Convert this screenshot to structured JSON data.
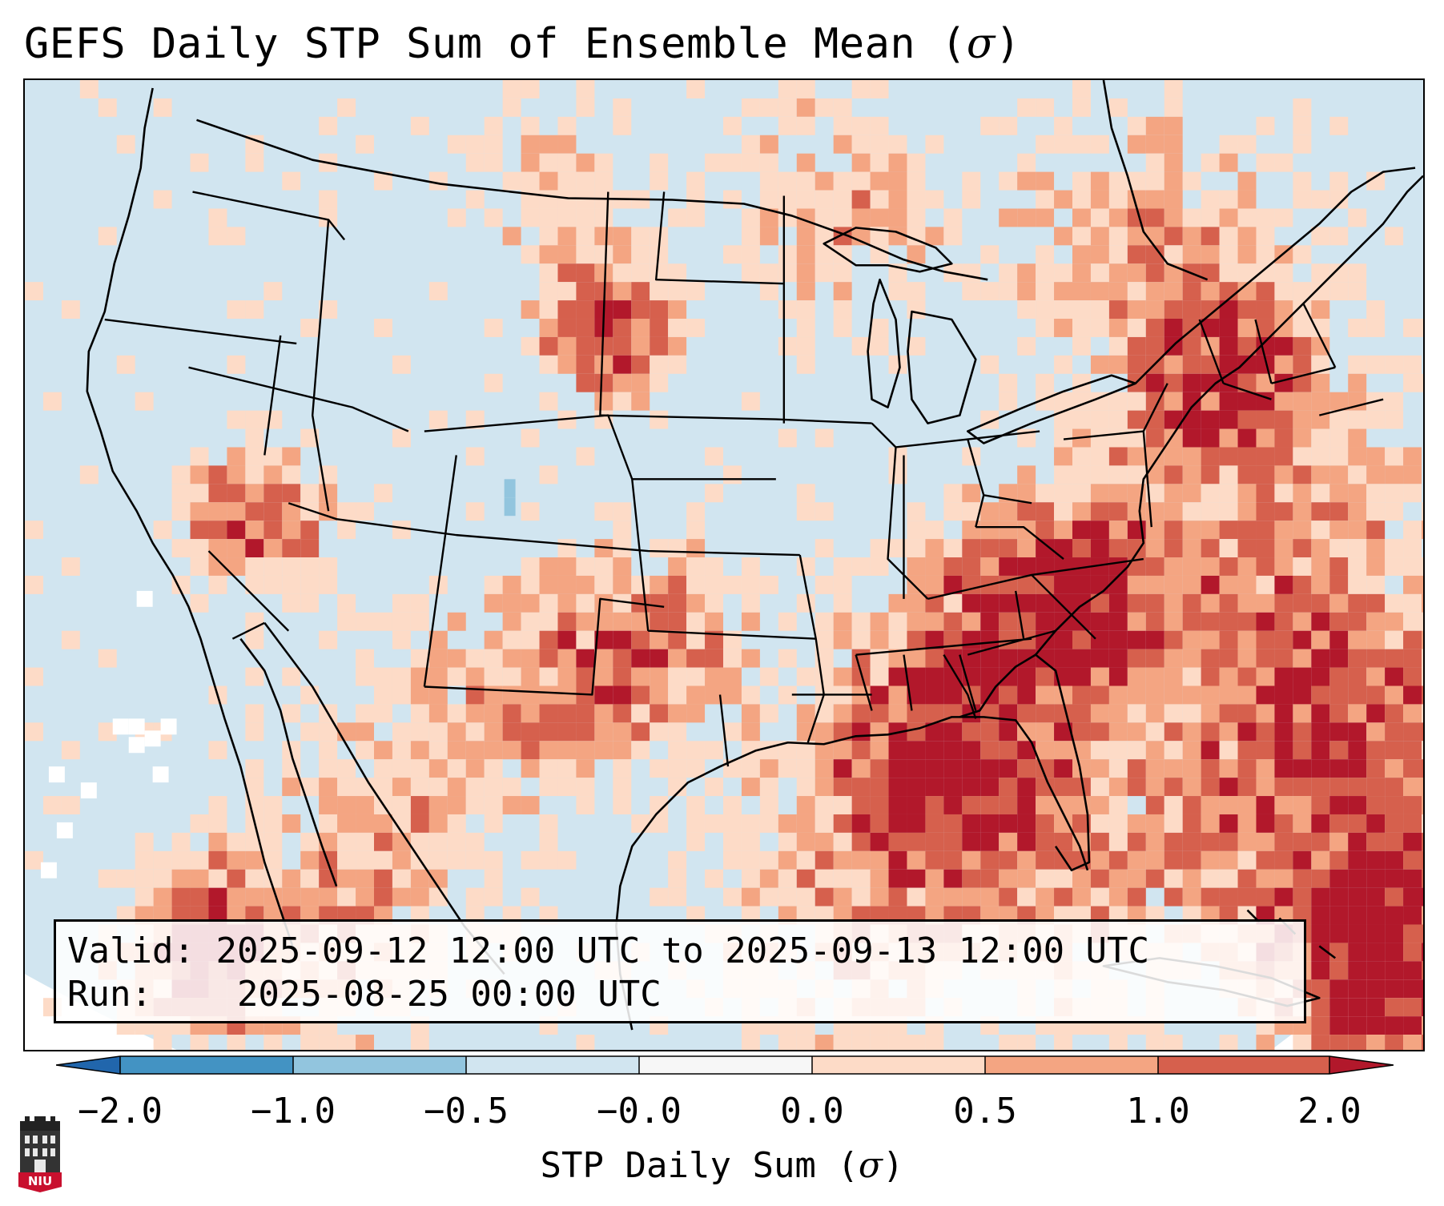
{
  "title": {
    "text": "GEFS Daily STP Sum of Ensemble Mean (",
    "symbol": "σ",
    "suffix": ")"
  },
  "info_box": {
    "valid_label": "Valid:",
    "valid_value": "2025-09-12 12:00 UTC to 2025-09-13 12:00 UTC",
    "run_label": "Run:",
    "run_value": "2025-08-25 00:00 UTC"
  },
  "colorbar": {
    "label_text": "STP Daily Sum (",
    "label_symbol": "σ",
    "label_suffix": ")",
    "ticks": [
      "−2.0",
      "−1.0",
      "−0.5",
      "−0.0",
      "0.0",
      "0.5",
      "1.0",
      "2.0"
    ],
    "bins": [
      {
        "range": "-2.0 to -1.0",
        "color": "#4393c3"
      },
      {
        "range": "-1.0 to -0.5",
        "color": "#92c5de"
      },
      {
        "range": "-0.5 to -0.0",
        "color": "#d1e5f0"
      },
      {
        "range": "-0.0 to 0.0",
        "color": "#f7f7f7"
      },
      {
        "range": "0.0 to 0.5",
        "color": "#fddbc7"
      },
      {
        "range": "0.5 to 1.0",
        "color": "#f4a582"
      },
      {
        "range": "1.0 to 2.0",
        "color": "#d6604d"
      }
    ],
    "under_color": "#2166ac",
    "over_color": "#b2182b"
  },
  "map": {
    "background_color": "#d1e5f0",
    "outside_domain_color": "#ffffff",
    "anomaly_regions": [
      {
        "name": "western North Dakota / eastern Montana",
        "category": "1.0 to 2.0+"
      },
      {
        "name": "northern Nevada / eastern California",
        "category": "1.0 to 2.0+"
      },
      {
        "name": "western Oklahoma / north Texas",
        "category": "1.0 to 2.0+"
      },
      {
        "name": "Tennessee Valley / Alabama",
        "category": "0.5 to 2.0"
      },
      {
        "name": "western Atlantic",
        "category": "0.5 to 2.0+"
      },
      {
        "name": "Caribbean / Greater Antilles",
        "category": "1.0 to 2.0+"
      },
      {
        "name": "eastern Colorado",
        "category": "-1.0 to -0.5"
      }
    ]
  },
  "logo": {
    "text": "NIU"
  }
}
